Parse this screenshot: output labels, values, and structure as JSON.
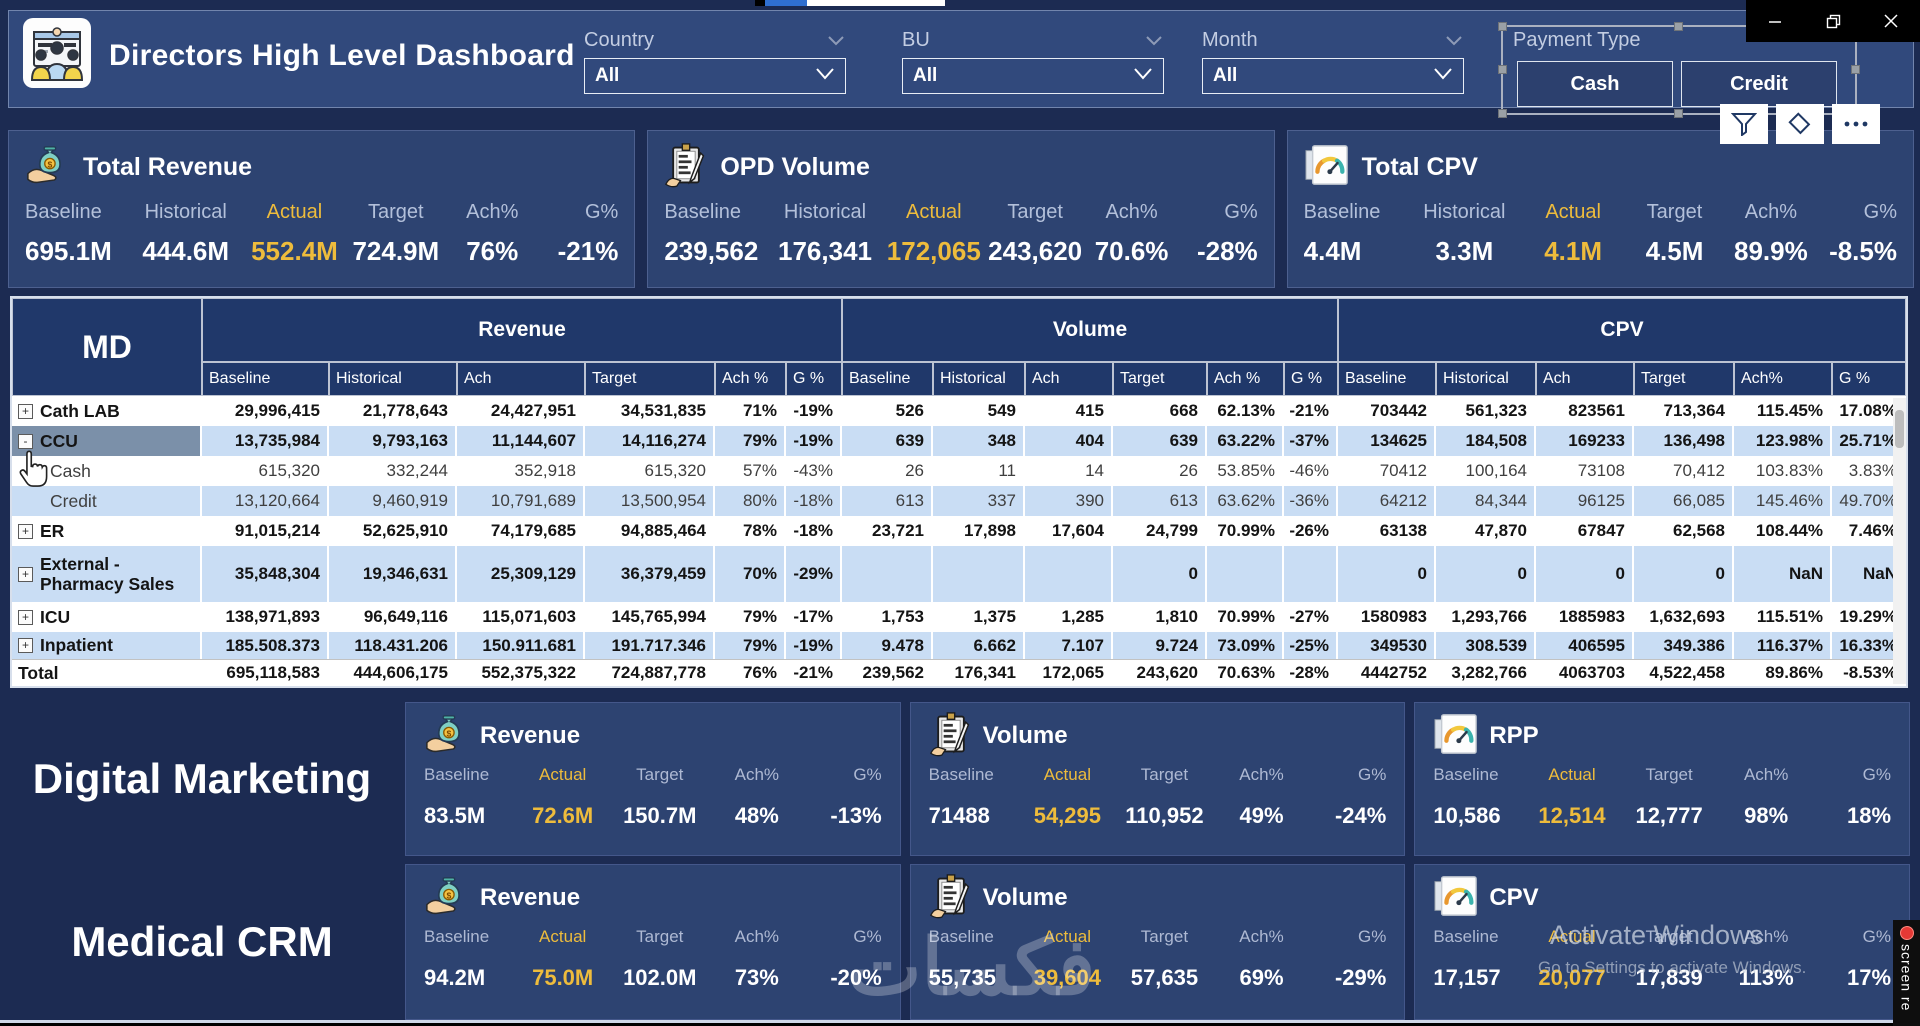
{
  "window": {
    "minimize_label": "minimize",
    "restore_label": "restore",
    "close_label": "close"
  },
  "header": {
    "title": "Directors High Level Dashboard",
    "slicers": [
      {
        "label": "Country",
        "value": "All"
      },
      {
        "label": "BU",
        "value": "All"
      },
      {
        "label": "Month",
        "value": "All"
      }
    ],
    "payment": {
      "label": "Payment Type",
      "buttons": [
        "Cash",
        "Credit"
      ]
    }
  },
  "kpis": [
    {
      "title": "Total Revenue",
      "icon": "money-bag-icon",
      "actual_index": 2,
      "cols": [
        "Baseline",
        "Historical",
        "Actual",
        "Target",
        "Ach%",
        "G%"
      ],
      "values": [
        "695.1M",
        "444.6M",
        "552.4M",
        "724.9M",
        "76%",
        "-21%"
      ]
    },
    {
      "title": "OPD Volume",
      "icon": "clipboard-icon",
      "actual_index": 2,
      "cols": [
        "Baseline",
        "Historical",
        "Actual",
        "Target",
        "Ach%",
        "G%"
      ],
      "values": [
        "239,562",
        "176,341",
        "172,065",
        "243,620",
        "70.6%",
        "-28%"
      ]
    },
    {
      "title": "Total CPV",
      "icon": "gauge-icon",
      "actual_index": 2,
      "cols": [
        "Baseline",
        "Historical",
        "Actual",
        "Target",
        "Ach%",
        "G%"
      ],
      "values": [
        "4.4M",
        "3.3M",
        "4.1M",
        "4.5M",
        "89.9%",
        "-8.5%"
      ]
    }
  ],
  "matrix": {
    "row_header": "MD",
    "groups": [
      {
        "label": "Revenue",
        "cols": [
          "Baseline",
          "Historical",
          "Ach",
          "Target",
          "Ach %",
          "G %"
        ]
      },
      {
        "label": "Volume",
        "cols": [
          "Baseline",
          "Historical",
          "Ach",
          "Target",
          "Ach %",
          "G %"
        ]
      },
      {
        "label": "CPV",
        "cols": [
          "Baseline",
          "Historical",
          "Ach",
          "Target",
          "Ach%",
          "G %"
        ]
      }
    ],
    "rows": [
      {
        "label": "Cath LAB",
        "expander": "+",
        "child": false,
        "alt": false,
        "hl": false,
        "bold": true,
        "cells": [
          "29,996,415",
          "21,778,643",
          "24,427,951",
          "34,531,835",
          "71%",
          "-19%",
          "526",
          "549",
          "415",
          "668",
          "62.13%",
          "-21%",
          "703442",
          "561,323",
          "823561",
          "713,364",
          "115.45%",
          "17.08%"
        ]
      },
      {
        "label": "CCU",
        "expander": "-",
        "child": false,
        "alt": true,
        "hl": true,
        "bold": true,
        "cells": [
          "13,735,984",
          "9,793,163",
          "11,144,607",
          "14,116,274",
          "79%",
          "-19%",
          "639",
          "348",
          "404",
          "639",
          "63.22%",
          "-37%",
          "134625",
          "184,508",
          "169233",
          "136,498",
          "123.98%",
          "25.71%"
        ]
      },
      {
        "label": "Cash",
        "expander": null,
        "child": true,
        "alt": false,
        "hl": false,
        "bold": false,
        "cells": [
          "615,320",
          "332,244",
          "352,918",
          "615,320",
          "57%",
          "-43%",
          "26",
          "11",
          "14",
          "26",
          "53.85%",
          "-46%",
          "70412",
          "100,164",
          "73108",
          "70,412",
          "103.83%",
          "3.83%"
        ]
      },
      {
        "label": "Credit",
        "expander": null,
        "child": true,
        "alt": true,
        "hl": false,
        "bold": false,
        "cells": [
          "13,120,664",
          "9,460,919",
          "10,791,689",
          "13,500,954",
          "80%",
          "-18%",
          "613",
          "337",
          "390",
          "613",
          "63.62%",
          "-36%",
          "64212",
          "84,344",
          "96125",
          "66,085",
          "145.46%",
          "49.70%"
        ]
      },
      {
        "label": "ER",
        "expander": "+",
        "child": false,
        "alt": false,
        "hl": false,
        "bold": true,
        "cells": [
          "91,015,214",
          "52,625,910",
          "74,179,685",
          "94,885,464",
          "78%",
          "-18%",
          "23,721",
          "17,898",
          "17,604",
          "24,799",
          "70.99%",
          "-26%",
          "63138",
          "47,870",
          "67847",
          "62,568",
          "108.44%",
          "7.46%"
        ]
      },
      {
        "label": "External - Pharmacy Sales",
        "expander": "+",
        "child": false,
        "alt": true,
        "hl": false,
        "bold": true,
        "cells": [
          "35,848,304",
          "19,346,631",
          "25,309,129",
          "36,379,459",
          "70%",
          "-29%",
          "",
          "",
          "",
          "0",
          "",
          "",
          "0",
          "0",
          "0",
          "0",
          "NaN",
          "NaN"
        ]
      },
      {
        "label": "ICU",
        "expander": "+",
        "child": false,
        "alt": false,
        "hl": false,
        "bold": true,
        "cells": [
          "138,971,893",
          "96,649,116",
          "115,071,603",
          "145,765,994",
          "79%",
          "-17%",
          "1,753",
          "1,375",
          "1,285",
          "1,810",
          "70.99%",
          "-27%",
          "1580983",
          "1,293,766",
          "1885983",
          "1,632,693",
          "115.51%",
          "19.29%"
        ]
      },
      {
        "label": "Inpatient",
        "expander": "+",
        "child": false,
        "alt": true,
        "hl": false,
        "bold": true,
        "cells": [
          "185.508.373",
          "118.431.206",
          "150.911.681",
          "191.717.346",
          "79%",
          "-19%",
          "9.478",
          "6.662",
          "7.107",
          "9.724",
          "73.09%",
          "-25%",
          "349530",
          "308.539",
          "406595",
          "349.386",
          "116.37%",
          "16.33%"
        ]
      },
      {
        "label": "Total",
        "expander": null,
        "child": false,
        "alt": false,
        "hl": false,
        "bold": true,
        "cells": [
          "695,118,583",
          "444,606,175",
          "552,375,322",
          "724,887,778",
          "76%",
          "-21%",
          "239,562",
          "176,341",
          "172,065",
          "243,620",
          "70.63%",
          "-28%",
          "4442752",
          "3,282,766",
          "4063703",
          "4,522,458",
          "89.86%",
          "-8.53%"
        ]
      }
    ]
  },
  "sections": [
    {
      "label": "Digital Marketing",
      "cards": [
        {
          "title": "Revenue",
          "icon": "money-bag-icon",
          "actual_index": 1,
          "cols": [
            "Baseline",
            "Actual",
            "Target",
            "Ach%",
            "G%"
          ],
          "values": [
            "83.5M",
            "72.6M",
            "150.7M",
            "48%",
            "-13%"
          ]
        },
        {
          "title": "Volume",
          "icon": "clipboard-icon",
          "actual_index": 1,
          "cols": [
            "Baseline",
            "Actual",
            "Target",
            "Ach%",
            "G%"
          ],
          "values": [
            "71488",
            "54,295",
            "110,952",
            "49%",
            "-24%"
          ]
        },
        {
          "title": "RPP",
          "icon": "gauge-icon",
          "actual_index": 1,
          "cols": [
            "Baseline",
            "Actual",
            "Target",
            "Ach%",
            "G%"
          ],
          "values": [
            "10,586",
            "12,514",
            "12,777",
            "98%",
            "18%"
          ]
        }
      ]
    },
    {
      "label": "Medical CRM",
      "cards": [
        {
          "title": "Revenue",
          "icon": "money-bag-icon",
          "actual_index": 1,
          "cols": [
            "Baseline",
            "Actual",
            "Target",
            "Ach%",
            "G%"
          ],
          "values": [
            "94.2M",
            "75.0M",
            "102.0M",
            "73%",
            "-20%"
          ]
        },
        {
          "title": "Volume",
          "icon": "clipboard-icon",
          "actual_index": 1,
          "cols": [
            "Baseline",
            "Actual",
            "Target",
            "Ach%",
            "G%"
          ],
          "values": [
            "55,735",
            "39,604",
            "57,635",
            "69%",
            "-29%"
          ]
        },
        {
          "title": "CPV",
          "icon": "gauge-icon",
          "actual_index": 1,
          "cols": [
            "Baseline",
            "Actual",
            "Target",
            "Ach%",
            "G%"
          ],
          "values": [
            "17,157",
            "20,077",
            "17,839",
            "113%",
            "17%"
          ]
        }
      ]
    }
  ],
  "watermark": {
    "line1": "Activate Windows",
    "line2": "Go to Settings to activate Windows.",
    "arabic": "فكسات"
  },
  "recorder": {
    "label": "screen re"
  },
  "colors": {
    "accent_gold": "#eebc3c",
    "panel": "#2d4371",
    "table_header": "#20386a",
    "row_alt": "#c9ddf4"
  }
}
